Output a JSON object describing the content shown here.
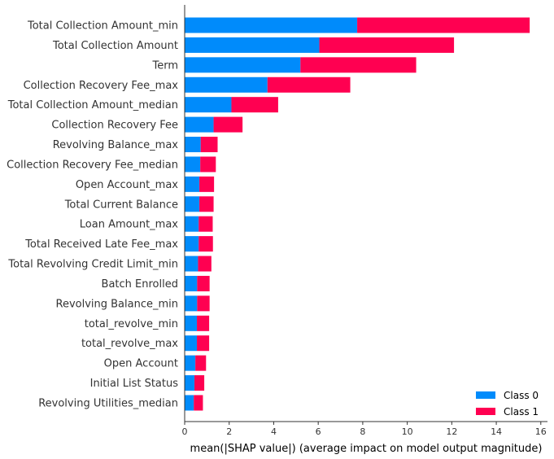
{
  "chart_data": {
    "type": "bar",
    "orientation": "horizontal",
    "stacked": true,
    "title": "",
    "xlabel": "mean(|SHAP value|) (average impact on model output magnitude)",
    "ylabel": "",
    "xlim": [
      0,
      16.3
    ],
    "xticks": [
      0,
      2,
      4,
      6,
      8,
      10,
      12,
      14,
      16
    ],
    "grid": false,
    "legend_position": "bottom-right",
    "categories": [
      "Total Collection Amount_min",
      "Total Collection Amount",
      "Term",
      "Collection Recovery Fee_max",
      "Total Collection Amount_median",
      "Collection Recovery Fee",
      "Revolving Balance_max",
      "Collection Recovery Fee_median",
      "Open Account_max",
      "Total Current Balance",
      "Loan Amount_max",
      "Total Received Late Fee_max",
      "Total Revolving Credit Limit_min",
      "Batch Enrolled",
      "Revolving Balance_min",
      "total_revolve_min",
      "total_revolve_max",
      "Open Account",
      "Initial List Status",
      "Revolving Utilities_median"
    ],
    "series": [
      {
        "name": "Class 0",
        "color": "#008bfb",
        "values": [
          7.75,
          6.05,
          5.2,
          3.72,
          2.1,
          1.3,
          0.72,
          0.7,
          0.66,
          0.66,
          0.63,
          0.63,
          0.6,
          0.56,
          0.56,
          0.55,
          0.55,
          0.48,
          0.44,
          0.41
        ]
      },
      {
        "name": "Class 1",
        "color": "#ff0051",
        "values": [
          7.75,
          6.05,
          5.2,
          3.72,
          2.1,
          1.3,
          0.76,
          0.7,
          0.66,
          0.64,
          0.63,
          0.64,
          0.6,
          0.56,
          0.56,
          0.55,
          0.55,
          0.48,
          0.44,
          0.41
        ]
      }
    ]
  }
}
